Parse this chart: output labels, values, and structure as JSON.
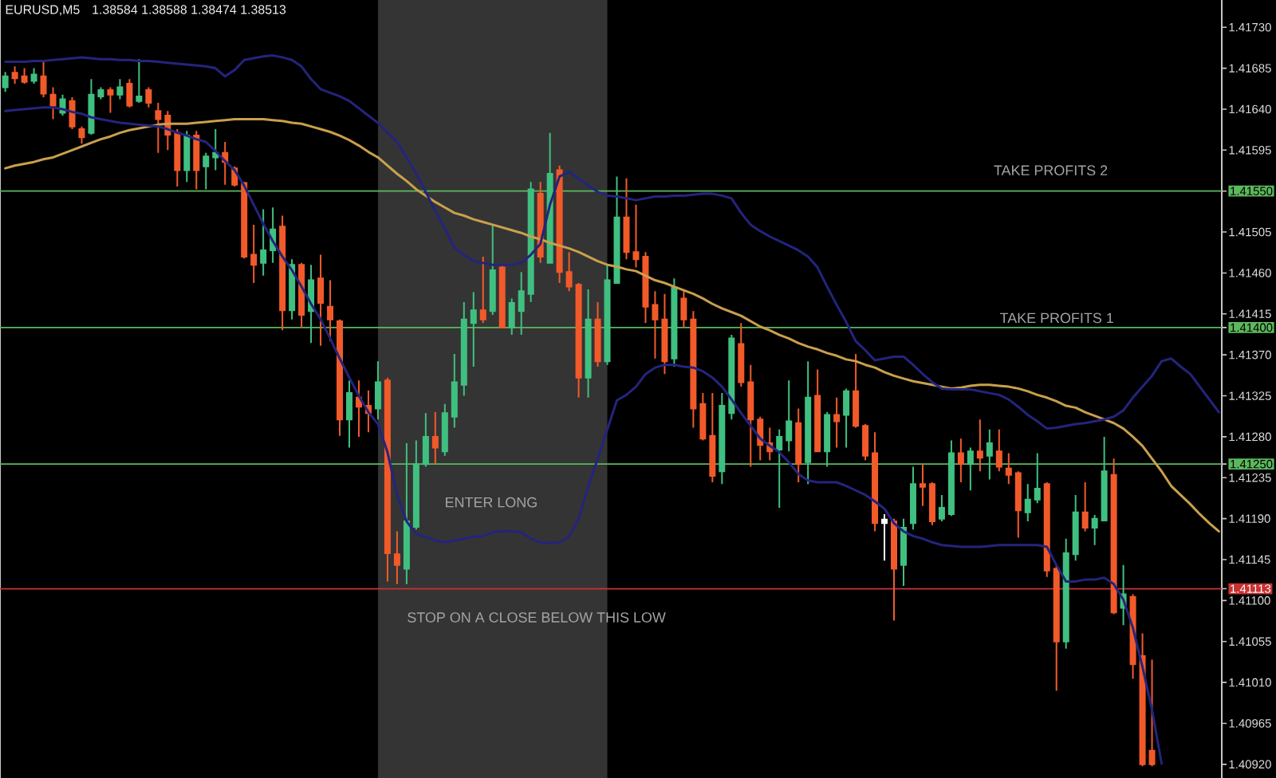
{
  "chart_data": {
    "type": "candlestick",
    "title": "EURUSD,M5",
    "subtitle": "1.38584 1.38588 1.38474 1.38513",
    "categories": [
      null,
      null,
      null,
      null,
      null,
      null,
      null,
      null,
      null,
      null,
      null,
      null,
      null,
      null,
      null,
      null,
      null,
      null,
      null,
      null,
      null,
      null,
      null,
      null,
      null,
      null,
      null,
      null,
      null,
      null,
      null,
      null,
      null,
      null,
      null,
      null,
      null,
      null,
      null,
      null,
      null,
      null,
      null,
      null,
      null,
      null,
      null,
      null,
      null,
      null,
      null,
      null,
      null,
      null,
      null,
      null,
      null,
      null,
      null,
      null,
      null,
      null,
      null,
      null,
      null,
      null,
      null,
      null,
      null,
      null,
      null,
      null,
      null,
      null,
      null,
      null,
      null,
      null,
      null,
      null,
      null,
      null,
      null,
      null,
      null,
      null,
      null,
      null,
      null,
      null,
      null,
      null,
      null,
      null,
      null,
      null,
      null,
      null,
      null,
      null,
      null,
      null,
      null,
      null,
      null,
      null,
      null,
      null,
      null,
      null,
      null,
      null,
      null,
      null,
      null,
      null,
      null,
      null,
      null,
      null,
      null,
      null,
      null,
      null,
      null,
      null,
      null,
      null
    ],
    "ohlc": [
      [
        1.41664,
        1.41681,
        1.41659,
        1.41676
      ],
      [
        1.4168,
        1.41687,
        1.41668,
        1.41674
      ],
      [
        1.41676,
        1.41685,
        1.41668,
        1.4167
      ],
      [
        1.41671,
        1.41685,
        1.41668,
        1.41678
      ],
      [
        1.41676,
        1.41693,
        1.41653,
        1.41657
      ],
      [
        1.41656,
        1.41664,
        1.41629,
        1.41644
      ],
      [
        1.41636,
        1.41656,
        1.41633,
        1.41651
      ],
      [
        1.41649,
        1.41653,
        1.41618,
        1.41621
      ],
      [
        1.41618,
        1.41621,
        1.41602,
        1.41609
      ],
      [
        1.41614,
        1.41673,
        1.41612,
        1.41656
      ],
      [
        1.41654,
        1.41664,
        1.41651,
        1.41661
      ],
      [
        1.41661,
        1.41664,
        1.41636,
        1.41656
      ],
      [
        1.41656,
        1.41673,
        1.41651,
        1.41664
      ],
      [
        1.41668,
        1.41673,
        1.41642,
        1.41644
      ],
      [
        1.41649,
        1.41695,
        1.41647,
        1.41654
      ],
      [
        1.41661,
        1.41664,
        1.41642,
        1.41647
      ],
      [
        1.41638,
        1.41647,
        1.41592,
        1.41629
      ],
      [
        1.41633,
        1.41638,
        1.41595,
        1.41612
      ],
      [
        1.41614,
        1.41618,
        1.41555,
        1.41573
      ],
      [
        1.41573,
        1.41616,
        1.4156,
        1.41611
      ],
      [
        1.41611,
        1.41616,
        1.41552,
        1.41573
      ],
      [
        1.41577,
        1.41592,
        1.41552,
        1.41588
      ],
      [
        1.41587,
        1.41618,
        1.41573,
        1.41592
      ],
      [
        1.41592,
        1.41604,
        1.41557,
        1.41582
      ],
      [
        1.41575,
        1.41577,
        1.41555,
        1.41557
      ],
      [
        1.41559,
        1.4156,
        1.41476,
        1.41478
      ],
      [
        1.4148,
        1.41513,
        1.41449,
        1.41469
      ],
      [
        1.41471,
        1.4153,
        1.41457,
        1.41485
      ],
      [
        1.41485,
        1.41532,
        1.41471,
        1.41508
      ],
      [
        1.41511,
        1.41523,
        1.41397,
        1.41419
      ],
      [
        1.41419,
        1.41475,
        1.41409,
        1.41469
      ],
      [
        1.41469,
        1.41471,
        1.414,
        1.41414
      ],
      [
        1.41418,
        1.41469,
        1.41383,
        1.41452
      ],
      [
        1.41454,
        1.4148,
        1.4138,
        1.41427
      ],
      [
        1.41423,
        1.41452,
        1.41385,
        1.41409
      ],
      [
        1.41407,
        1.41409,
        1.41281,
        1.41299
      ],
      [
        1.41299,
        1.41342,
        1.41268,
        1.41328
      ],
      [
        1.41323,
        1.41342,
        1.4128,
        1.41313
      ],
      [
        1.41314,
        1.41331,
        1.41285,
        1.41306
      ],
      [
        1.41311,
        1.41363,
        1.41299,
        1.4134
      ],
      [
        1.41342,
        1.41345,
        1.41121,
        1.41152
      ],
      [
        1.41151,
        1.41176,
        1.41118,
        1.41139
      ],
      [
        1.41135,
        1.41273,
        1.41118,
        1.41187
      ],
      [
        1.41181,
        1.41276,
        1.41178,
        1.4125
      ],
      [
        1.4125,
        1.41306,
        1.41247,
        1.4128
      ],
      [
        1.4128,
        1.41307,
        1.4125,
        1.41268
      ],
      [
        1.41264,
        1.41316,
        1.41259,
        1.41306
      ],
      [
        1.41302,
        1.41371,
        1.4129,
        1.4134
      ],
      [
        1.41337,
        1.41428,
        1.41325,
        1.41409
      ],
      [
        1.41405,
        1.41439,
        1.41357,
        1.41419
      ],
      [
        1.41419,
        1.41478,
        1.41405,
        1.41409
      ],
      [
        1.41418,
        1.41513,
        1.41414,
        1.41463
      ],
      [
        1.41466,
        1.41469,
        1.414,
        1.414
      ],
      [
        1.414,
        1.41432,
        1.41392,
        1.41427
      ],
      [
        1.41418,
        1.41461,
        1.41392,
        1.4144
      ],
      [
        1.41437,
        1.4156,
        1.41428,
        1.41552
      ],
      [
        1.41547,
        1.4156,
        1.41471,
        1.41478
      ],
      [
        1.41471,
        1.41614,
        1.41471,
        1.41569
      ],
      [
        1.41573,
        1.41578,
        1.41449,
        1.41461
      ],
      [
        1.41461,
        1.41483,
        1.4144,
        1.41445
      ],
      [
        1.41447,
        1.41449,
        1.41323,
        1.41345
      ],
      [
        1.41345,
        1.41442,
        1.41323,
        1.41409
      ],
      [
        1.41409,
        1.41428,
        1.41357,
        1.41363
      ],
      [
        1.41363,
        1.41469,
        1.41359,
        1.41452
      ],
      [
        1.41449,
        1.41566,
        1.41449,
        1.41521
      ],
      [
        1.41521,
        1.41564,
        1.41475,
        1.41483
      ],
      [
        1.41483,
        1.41535,
        1.41466,
        1.41475
      ],
      [
        1.41478,
        1.41483,
        1.41405,
        1.41423
      ],
      [
        1.41425,
        1.4144,
        1.41366,
        1.41409
      ],
      [
        1.41409,
        1.41437,
        1.41349,
        1.41363
      ],
      [
        1.41366,
        1.41454,
        1.41357,
        1.41444
      ],
      [
        1.41432,
        1.4144,
        1.414,
        1.41409
      ],
      [
        1.41409,
        1.41418,
        1.4129,
        1.41311
      ],
      [
        1.41316,
        1.41328,
        1.41276,
        1.41278
      ],
      [
        1.41281,
        1.41328,
        1.4123,
        1.41237
      ],
      [
        1.41242,
        1.41328,
        1.41228,
        1.41314
      ],
      [
        1.41306,
        1.41392,
        1.41299,
        1.41388
      ],
      [
        1.41382,
        1.41405,
        1.41335,
        1.4134
      ],
      [
        1.4134,
        1.41359,
        1.41247,
        1.41299
      ],
      [
        1.41299,
        1.41302,
        1.41254,
        1.41271
      ],
      [
        1.41273,
        1.4129,
        1.41254,
        1.41264
      ],
      [
        1.41266,
        1.41288,
        1.41202,
        1.4128
      ],
      [
        1.41276,
        1.41342,
        1.41264,
        1.41297
      ],
      [
        1.41295,
        1.41311,
        1.4123,
        1.4125
      ],
      [
        1.41252,
        1.41363,
        1.41228,
        1.41323
      ],
      [
        1.41325,
        1.41354,
        1.41264,
        1.41264
      ],
      [
        1.41264,
        1.41307,
        1.41247,
        1.41304
      ],
      [
        1.41304,
        1.41323,
        1.41268,
        1.41297
      ],
      [
        1.41304,
        1.41333,
        1.41268,
        1.4133
      ],
      [
        1.4133,
        1.41371,
        1.4129,
        1.41292
      ],
      [
        1.41292,
        1.41294,
        1.41254,
        1.41259
      ],
      [
        1.41262,
        1.41285,
        1.41176,
        1.41185
      ],
      [
        1.41189,
        1.41195,
        1.41144,
        1.41185
      ],
      [
        1.41187,
        1.4119,
        1.41078,
        1.41135
      ],
      [
        1.41139,
        1.4119,
        1.41116,
        1.4118
      ],
      [
        1.41185,
        1.41247,
        1.41178,
        1.41228
      ],
      [
        1.41228,
        1.4125,
        1.41204,
        1.41225
      ],
      [
        1.41228,
        1.4123,
        1.41183,
        1.41187
      ],
      [
        1.4119,
        1.41216,
        1.41187,
        1.41202
      ],
      [
        1.41195,
        1.41276,
        1.41193,
        1.41262
      ],
      [
        1.41262,
        1.41278,
        1.4123,
        1.4125
      ],
      [
        1.4125,
        1.41268,
        1.41221,
        1.41264
      ],
      [
        1.41264,
        1.41299,
        1.41242,
        1.41257
      ],
      [
        1.41259,
        1.41288,
        1.41233,
        1.41273
      ],
      [
        1.41264,
        1.41288,
        1.41242,
        1.41247
      ],
      [
        1.41245,
        1.41262,
        1.41228,
        1.41238
      ],
      [
        1.4124,
        1.41242,
        1.41169,
        1.41199
      ],
      [
        1.41197,
        1.41228,
        1.41187,
        1.41211
      ],
      [
        1.41211,
        1.41262,
        1.41207,
        1.41223
      ],
      [
        1.41228,
        1.4123,
        1.41126,
        1.41133
      ],
      [
        1.41135,
        1.41139,
        1.41001,
        1.41055
      ],
      [
        1.41055,
        1.41168,
        1.41047,
        1.41152
      ],
      [
        1.41151,
        1.41216,
        1.41144,
        1.41197
      ],
      [
        1.41197,
        1.4123,
        1.41176,
        1.4118
      ],
      [
        1.4118,
        1.41194,
        1.41161,
        1.4119
      ],
      [
        1.41188,
        1.4128,
        1.41187,
        1.41242
      ],
      [
        1.41238,
        1.41256,
        1.41085,
        1.41087
      ],
      [
        1.41092,
        1.41139,
        1.41073,
        1.41107
      ],
      [
        1.41104,
        1.41107,
        1.41014,
        1.4103
      ],
      [
        1.41039,
        1.41064,
        1.40918,
        1.4092
      ],
      [
        1.40935,
        1.41035,
        1.40918,
        1.4092
      ],
      null,
      null,
      null,
      null,
      null,
      null,
      null
    ],
    "colors": [
      "#40c080",
      "#f25a2a",
      "#f25a2a",
      "#40c080",
      "#f25a2a",
      "#f25a2a",
      "#40c080",
      "#f25a2a",
      "#f25a2a",
      "#40c080",
      "#40c080",
      "#f25a2a",
      "#40c080",
      "#f25a2a",
      "#40c080",
      "#f25a2a",
      "#f25a2a",
      "#f25a2a",
      "#f25a2a",
      "#40c080",
      "#f25a2a",
      "#40c080",
      "#40c080",
      "#f25a2a",
      "#f25a2a",
      "#f25a2a",
      "#f25a2a",
      "#40c080",
      "#40c080",
      "#f25a2a",
      "#40c080",
      "#f25a2a",
      "#40c080",
      "#f25a2a",
      "#f25a2a",
      "#f25a2a",
      "#40c080",
      "#f25a2a",
      "#f25a2a",
      "#40c080",
      "#f25a2a",
      "#f25a2a",
      "#40c080",
      "#40c080",
      "#40c080",
      "#f25a2a",
      "#40c080",
      "#40c080",
      "#40c080",
      "#40c080",
      "#f25a2a",
      "#40c080",
      "#f25a2a",
      "#40c080",
      "#40c080",
      "#40c080",
      "#f25a2a",
      "#40c080",
      "#f25a2a",
      "#f25a2a",
      "#f25a2a",
      "#40c080",
      "#f25a2a",
      "#40c080",
      "#40c080",
      "#f25a2a",
      "#f25a2a",
      "#f25a2a",
      "#f25a2a",
      "#f25a2a",
      "#40c080",
      "#f25a2a",
      "#f25a2a",
      "#f25a2a",
      "#f25a2a",
      "#40c080",
      "#40c080",
      "#f25a2a",
      "#f25a2a",
      "#f25a2a",
      "#f25a2a",
      "#40c080",
      "#40c080",
      "#f25a2a",
      "#40c080",
      "#f25a2a",
      "#40c080",
      "#f25a2a",
      "#40c080",
      "#f25a2a",
      "#f25a2a",
      "#f25a2a",
      "#ffffff",
      "#f25a2a",
      "#40c080",
      "#40c080",
      "#f25a2a",
      "#f25a2a",
      "#40c080",
      "#40c080",
      "#f25a2a",
      "#40c080",
      "#f25a2a",
      "#40c080",
      "#f25a2a",
      "#f25a2a",
      "#f25a2a",
      "#40c080",
      "#40c080",
      "#f25a2a",
      "#f25a2a",
      "#40c080",
      "#40c080",
      "#f25a2a",
      "#40c080",
      "#40c080",
      "#f25a2a",
      "#40c080",
      "#f25a2a",
      "#f25a2a",
      "#f25a2a",
      null,
      null,
      null,
      null,
      null,
      null,
      null
    ],
    "series": [
      {
        "type": "line",
        "color": "#c9a04c",
        "values": [
          1.41575,
          1.41578,
          1.4158,
          1.41582,
          1.41585,
          1.41587,
          1.41591,
          1.41595,
          1.41599,
          1.41603,
          1.41607,
          1.4161,
          1.41614,
          1.41617,
          1.41619,
          1.41621,
          1.41623,
          1.41624,
          1.41624,
          1.41624,
          1.41625,
          1.41626,
          1.41627,
          1.41628,
          1.41629,
          1.41629,
          1.41629,
          1.41629,
          1.41628,
          1.41627,
          1.41625,
          1.41624,
          1.41621,
          1.41618,
          1.41615,
          1.41611,
          1.41606,
          1.416,
          1.41593,
          1.41587,
          1.41578,
          1.41569,
          1.41561,
          1.41552,
          1.41545,
          1.41538,
          1.41532,
          1.41526,
          1.41523,
          1.41519,
          1.41516,
          1.41513,
          1.4151,
          1.41507,
          1.41504,
          1.415,
          1.41497,
          1.41493,
          1.4149,
          1.41487,
          1.41483,
          1.41478,
          1.41473,
          1.41469,
          1.41467,
          1.41464,
          1.41462,
          1.41457,
          1.41452,
          1.41449,
          1.41445,
          1.41441,
          1.41437,
          1.41432,
          1.41426,
          1.41421,
          1.41417,
          1.41413,
          1.41407,
          1.41401,
          1.41397,
          1.41392,
          1.41388,
          1.41383,
          1.41379,
          1.41376,
          1.41372,
          1.41369,
          1.41365,
          1.41363,
          1.41359,
          1.41356,
          1.41351,
          1.41347,
          1.41344,
          1.41341,
          1.41339,
          1.41337,
          1.41335,
          1.41333,
          1.41334,
          1.41336,
          1.41337,
          1.41337,
          1.41336,
          1.41335,
          1.41333,
          1.4133,
          1.41326,
          1.41323,
          1.41319,
          1.41314,
          1.41312,
          1.41307,
          1.41303,
          1.41299,
          1.41295,
          1.41289,
          1.4128,
          1.4127,
          1.41256,
          1.41242,
          1.41226,
          1.41216,
          1.41206,
          1.41195,
          1.41185,
          1.41176
        ]
      },
      {
        "type": "line",
        "color": "#24247e",
        "values": [
          1.41692,
          1.41692,
          1.41692,
          1.41693,
          1.41693,
          1.41694,
          1.41695,
          1.41696,
          1.41697,
          1.41696,
          1.41695,
          1.41695,
          1.41694,
          1.41694,
          1.41693,
          1.41693,
          1.41692,
          1.41691,
          1.4169,
          1.41689,
          1.41688,
          1.41687,
          1.41685,
          1.41676,
          1.41683,
          1.41694,
          1.41696,
          1.41698,
          1.41699,
          1.41697,
          1.41694,
          1.41687,
          1.41673,
          1.41662,
          1.41658,
          1.41654,
          1.41649,
          1.41641,
          1.41633,
          1.41625,
          1.41614,
          1.41604,
          1.41587,
          1.41569,
          1.41549,
          1.41528,
          1.41509,
          1.41488,
          1.4148,
          1.41473,
          1.41471,
          1.41469,
          1.41469,
          1.41469,
          1.41471,
          1.4148,
          1.41492,
          1.41535,
          1.41566,
          1.41571,
          1.41564,
          1.41556,
          1.41549,
          1.41545,
          1.41544,
          1.41542,
          1.4154,
          1.41542,
          1.41544,
          1.41544,
          1.41545,
          1.41545,
          1.41546,
          1.41547,
          1.41547,
          1.41545,
          1.41542,
          1.41526,
          1.41513,
          1.41506,
          1.415,
          1.41495,
          1.4149,
          1.41485,
          1.41478,
          1.41466,
          1.41445,
          1.41425,
          1.41406,
          1.41385,
          1.41375,
          1.41364,
          1.41366,
          1.41368,
          1.41368,
          1.41359,
          1.41349,
          1.4134,
          1.41333,
          1.41332,
          1.41332,
          1.41332,
          1.4133,
          1.41328,
          1.41326,
          1.41321,
          1.41313,
          1.41304,
          1.41297,
          1.41289,
          1.4129,
          1.41292,
          1.41294,
          1.41295,
          1.41297,
          1.41299,
          1.41302,
          1.41309,
          1.41323,
          1.41335,
          1.41347,
          1.41363,
          1.41366,
          1.41357,
          1.41349,
          1.41335,
          1.41321,
          1.41307
        ]
      },
      {
        "type": "line",
        "color": "#24247e",
        "values": [
          1.41638,
          1.41639,
          1.4164,
          1.41641,
          1.41642,
          1.41642,
          1.4164,
          1.41637,
          1.41635,
          1.41631,
          1.41629,
          1.41627,
          1.41625,
          1.41624,
          1.41623,
          1.41622,
          1.41621,
          1.41618,
          1.41614,
          1.41611,
          1.41607,
          1.41604,
          1.41594,
          1.41583,
          1.41573,
          1.41556,
          1.41535,
          1.41514,
          1.41495,
          1.41478,
          1.41463,
          1.41445,
          1.41426,
          1.41409,
          1.41388,
          1.41366,
          1.41345,
          1.41325,
          1.41307,
          1.41294,
          1.41263,
          1.41216,
          1.41187,
          1.41173,
          1.4117,
          1.41166,
          1.41164,
          1.41166,
          1.41168,
          1.4117,
          1.41171,
          1.41175,
          1.41176,
          1.41176,
          1.41175,
          1.41168,
          1.41164,
          1.41163,
          1.41164,
          1.4117,
          1.4119,
          1.41225,
          1.41256,
          1.41288,
          1.4132,
          1.41326,
          1.41335,
          1.41349,
          1.41356,
          1.41359,
          1.41359,
          1.41357,
          1.41356,
          1.41352,
          1.41345,
          1.41335,
          1.41321,
          1.41306,
          1.41292,
          1.41278,
          1.4127,
          1.41263,
          1.41252,
          1.41239,
          1.41232,
          1.4123,
          1.4123,
          1.4123,
          1.41226,
          1.41221,
          1.41216,
          1.41209,
          1.41201,
          1.41185,
          1.41176,
          1.41171,
          1.41168,
          1.41164,
          1.41161,
          1.4116,
          1.41159,
          1.41159,
          1.41159,
          1.4116,
          1.41161,
          1.41161,
          1.41161,
          1.41161,
          1.41161,
          1.41159,
          1.41139,
          1.41121,
          1.41121,
          1.41123,
          1.41123,
          1.41125,
          1.41118,
          1.41101,
          1.4107,
          1.41027,
          1.4098,
          1.40921,
          null,
          null,
          null,
          null,
          null,
          null
        ]
      }
    ],
    "ylim": [
      1.40905,
      1.4176
    ],
    "yticks": [
      {
        "value": 1.4092,
        "label": "1.40920"
      },
      1.40965,
      {
        "value": 1.4101,
        "label": "1.41010"
      },
      1.41055,
      {
        "value": 1.411,
        "label": "1.41100"
      },
      1.41113,
      1.41145,
      {
        "value": 1.4119,
        "label": "1.41190"
      },
      1.41235,
      {
        "value": 1.4125,
        "label": "1.41250"
      },
      {
        "value": 1.4128,
        "label": "1.41280"
      },
      1.41325,
      {
        "value": 1.4137,
        "label": "1.41370"
      },
      {
        "value": 1.414,
        "label": "1.41400"
      },
      1.41415,
      {
        "value": 1.4146,
        "label": "1.41460"
      },
      1.41505,
      {
        "value": 1.4155,
        "label": "1.41550"
      },
      1.41595,
      {
        "value": 1.4164,
        "label": "1.41640"
      },
      1.41685,
      {
        "value": 1.4173,
        "label": "1.41730"
      }
    ],
    "tick_labels": "y",
    "ref_lines": [
      {
        "axis": "y",
        "value": 1.4155,
        "label": "TAKE PROFITS 2",
        "color": "#5cb85c"
      },
      {
        "axis": "y",
        "value": 1.414,
        "label": "TAKE PROFITS 1",
        "color": "#5cb85c"
      },
      {
        "axis": "y",
        "value": 1.4125,
        "label": "ENTER LONG",
        "color": "#5cb85c"
      },
      {
        "axis": "y",
        "value": 1.41113,
        "label": "STOP ON A CLOSE BELOW THIS LOW",
        "color": "#c83232"
      }
    ]
  }
}
